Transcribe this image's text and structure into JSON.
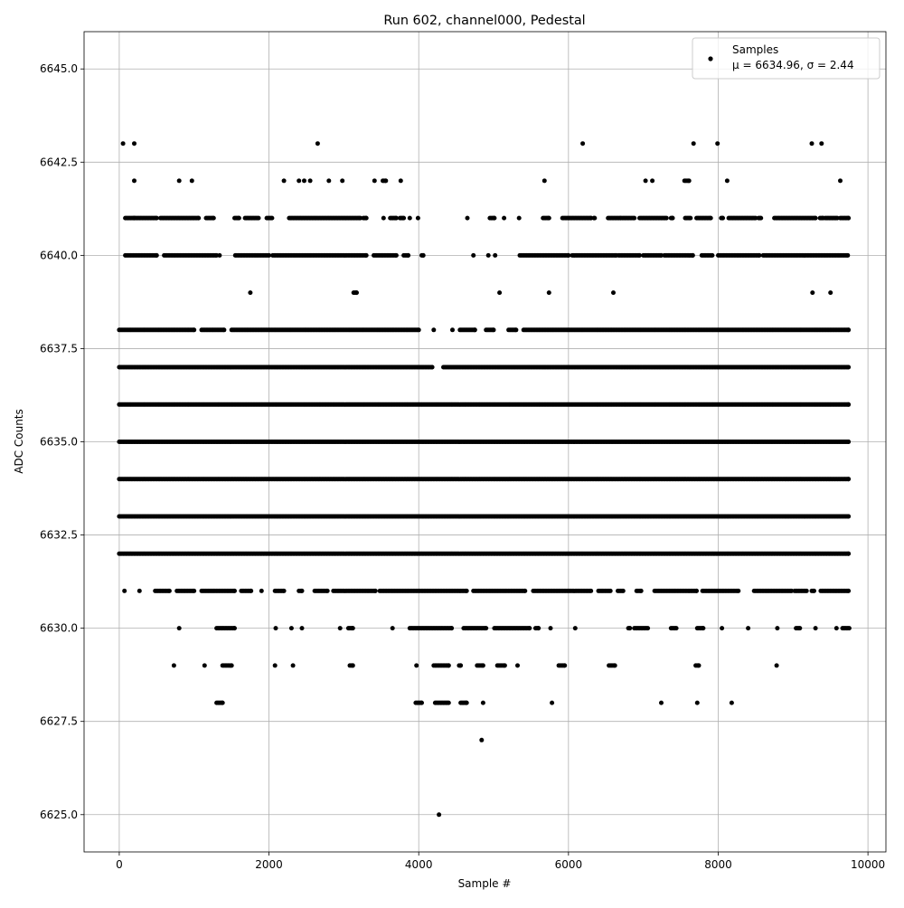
{
  "chart_data": {
    "type": "scatter",
    "title": "Run 602, channel000, Pedestal",
    "xlabel": "Sample #",
    "ylabel": "ADC Counts",
    "xlim": [
      -470,
      10240
    ],
    "ylim": [
      6624.0,
      6646.0
    ],
    "xticks": [
      0,
      2000,
      4000,
      6000,
      8000,
      10000
    ],
    "xtick_labels": [
      "0",
      "2000",
      "4000",
      "6000",
      "8000",
      "10000"
    ],
    "yticks": [
      6625.0,
      6627.5,
      6630.0,
      6632.5,
      6635.0,
      6637.5,
      6640.0,
      6642.5,
      6645.0
    ],
    "ytick_labels": [
      "6625.0",
      "6627.5",
      "6630.0",
      "6632.5",
      "6635.0",
      "6637.5",
      "6640.0",
      "6642.5",
      "6645.0"
    ],
    "grid": true,
    "legend": {
      "placement": "top-right",
      "label": "Samples",
      "stats": "μ = 6634.96, σ = 2.44"
    },
    "marker_color": "#000000",
    "series": [
      {
        "name": "Samples",
        "level_ranges": [
          {
            "y": 6625,
            "ranges": [
              [
                4270,
                4270
              ]
            ]
          },
          {
            "y": 6627,
            "ranges": [
              [
                4840,
                4840
              ]
            ]
          },
          {
            "y": 6628,
            "ranges": [
              [
                1300,
                1380
              ],
              [
                3960,
                4040
              ],
              [
                4220,
                4400
              ],
              [
                4560,
                4640
              ],
              [
                4860,
                4860
              ],
              [
                5780,
                5780
              ],
              [
                7240,
                7240
              ],
              [
                7720,
                7720
              ],
              [
                8180,
                8180
              ]
            ]
          },
          {
            "y": 6629,
            "ranges": [
              [
                730,
                730
              ],
              [
                1140,
                1140
              ],
              [
                1380,
                1500
              ],
              [
                2080,
                2080
              ],
              [
                2320,
                2320
              ],
              [
                3080,
                3120
              ],
              [
                3970,
                3970
              ],
              [
                4200,
                4400
              ],
              [
                4540,
                4560
              ],
              [
                4780,
                4860
              ],
              [
                5050,
                5150
              ],
              [
                5320,
                5320
              ],
              [
                5870,
                5950
              ],
              [
                6540,
                6620
              ],
              [
                7700,
                7740
              ],
              [
                8780,
                8780
              ]
            ]
          },
          {
            "y": 6630,
            "ranges": [
              [
                800,
                800
              ],
              [
                1300,
                1540
              ],
              [
                2090,
                2090
              ],
              [
                2300,
                2300
              ],
              [
                2440,
                2440
              ],
              [
                2950,
                2950
              ],
              [
                3060,
                3120
              ],
              [
                3650,
                3650
              ],
              [
                3880,
                4440
              ],
              [
                4600,
                4900
              ],
              [
                5010,
                5480
              ],
              [
                5560,
                5600
              ],
              [
                5760,
                5760
              ],
              [
                6090,
                6090
              ],
              [
                6800,
                6820
              ],
              [
                6880,
                7060
              ],
              [
                7370,
                7440
              ],
              [
                7720,
                7800
              ],
              [
                8050,
                8050
              ],
              [
                8400,
                8400
              ],
              [
                8790,
                8790
              ],
              [
                9040,
                9090
              ],
              [
                9300,
                9300
              ],
              [
                9580,
                9580
              ],
              [
                9660,
                9750
              ]
            ]
          },
          {
            "y": 6631,
            "ranges": [
              [
                70,
                70
              ],
              [
                270,
                270
              ],
              [
                480,
                670
              ],
              [
                770,
                1000
              ],
              [
                1100,
                1540
              ],
              [
                1630,
                1760
              ],
              [
                1900,
                1900
              ],
              [
                2080,
                2200
              ],
              [
                2400,
                2440
              ],
              [
                2610,
                2780
              ],
              [
                2860,
                3420
              ],
              [
                3480,
                4640
              ],
              [
                4730,
                5420
              ],
              [
                5530,
                6300
              ],
              [
                6400,
                6560
              ],
              [
                6660,
                6730
              ],
              [
                6910,
                6970
              ],
              [
                7150,
                7710
              ],
              [
                7790,
                8270
              ],
              [
                8480,
                8980
              ],
              [
                9020,
                9180
              ],
              [
                9250,
                9280
              ],
              [
                9370,
                9740
              ]
            ]
          },
          {
            "y": 6632,
            "ranges": [
              [
                0,
                9740
              ]
            ]
          },
          {
            "y": 6633,
            "ranges": [
              [
                0,
                9740
              ]
            ]
          },
          {
            "y": 6634,
            "ranges": [
              [
                0,
                9740
              ]
            ]
          },
          {
            "y": 6635,
            "ranges": [
              [
                0,
                9740
              ]
            ]
          },
          {
            "y": 6636,
            "ranges": [
              [
                0,
                9740
              ]
            ]
          },
          {
            "y": 6637,
            "ranges": [
              [
                0,
                4180
              ],
              [
                4330,
                9740
              ]
            ]
          },
          {
            "y": 6638,
            "ranges": [
              [
                0,
                1000
              ],
              [
                1100,
                1400
              ],
              [
                1500,
                4000
              ],
              [
                4200,
                4200
              ],
              [
                4450,
                4450
              ],
              [
                4550,
                4750
              ],
              [
                4900,
                5000
              ],
              [
                5200,
                5300
              ],
              [
                5400,
                9740
              ]
            ]
          },
          {
            "y": 6639,
            "ranges": [
              [
                1750,
                1750
              ],
              [
                3130,
                3170
              ],
              [
                5080,
                5080
              ],
              [
                5740,
                5740
              ],
              [
                6600,
                6600
              ],
              [
                9260,
                9260
              ],
              [
                9500,
                9500
              ]
            ]
          },
          {
            "y": 6640,
            "ranges": [
              [
                80,
                500
              ],
              [
                600,
                1300
              ],
              [
                1340,
                1340
              ],
              [
                1550,
                2000
              ],
              [
                2050,
                3300
              ],
              [
                3400,
                3700
              ],
              [
                3800,
                3860
              ],
              [
                4040,
                4060
              ],
              [
                4730,
                4730
              ],
              [
                4930,
                4930
              ],
              [
                5020,
                5020
              ],
              [
                5350,
                6000
              ],
              [
                6050,
                6640
              ],
              [
                6670,
                6950
              ],
              [
                7000,
                7240
              ],
              [
                7280,
                7660
              ],
              [
                7780,
                7920
              ],
              [
                8000,
                8550
              ],
              [
                8600,
                9730
              ]
            ]
          },
          {
            "y": 6641,
            "ranges": [
              [
                80,
                200
              ],
              [
                200,
                500
              ],
              [
                550,
                1060
              ],
              [
                1160,
                1260
              ],
              [
                1540,
                1600
              ],
              [
                1680,
                1860
              ],
              [
                1970,
                2040
              ],
              [
                2270,
                3220
              ],
              [
                3260,
                3300
              ],
              [
                3530,
                3530
              ],
              [
                3620,
                3700
              ],
              [
                3750,
                3800
              ],
              [
                3880,
                3880
              ],
              [
                3990,
                3990
              ],
              [
                4650,
                4650
              ],
              [
                4950,
                5010
              ],
              [
                5140,
                5140
              ],
              [
                5340,
                5340
              ],
              [
                5660,
                5740
              ],
              [
                5920,
                6300
              ],
              [
                6340,
                6350
              ],
              [
                6530,
                6700
              ],
              [
                6720,
                6880
              ],
              [
                6950,
                7310
              ],
              [
                7370,
                7390
              ],
              [
                7560,
                7630
              ],
              [
                7710,
                7900
              ],
              [
                8040,
                8060
              ],
              [
                8140,
                8500
              ],
              [
                8540,
                8570
              ],
              [
                8750,
                8820
              ],
              [
                8840,
                9300
              ],
              [
                9360,
                9400
              ],
              [
                9430,
                9590
              ],
              [
                9630,
                9740
              ]
            ]
          },
          {
            "y": 6642,
            "ranges": [
              [
                200,
                200
              ],
              [
                800,
                800
              ],
              [
                970,
                970
              ],
              [
                2200,
                2200
              ],
              [
                2400,
                2400
              ],
              [
                2470,
                2470
              ],
              [
                2550,
                2550
              ],
              [
                2800,
                2800
              ],
              [
                2980,
                2980
              ],
              [
                3410,
                3410
              ],
              [
                3520,
                3560
              ],
              [
                3760,
                3760
              ],
              [
                5680,
                5680
              ],
              [
                7030,
                7030
              ],
              [
                7120,
                7120
              ],
              [
                7550,
                7610
              ],
              [
                8120,
                8120
              ],
              [
                9630,
                9630
              ]
            ]
          },
          {
            "y": 6643,
            "ranges": [
              [
                50,
                50
              ],
              [
                200,
                200
              ],
              [
                2650,
                2650
              ],
              [
                6190,
                6190
              ],
              [
                7670,
                7670
              ],
              [
                7990,
                7990
              ],
              [
                9250,
                9250
              ],
              [
                9380,
                9380
              ]
            ]
          }
        ]
      }
    ]
  }
}
